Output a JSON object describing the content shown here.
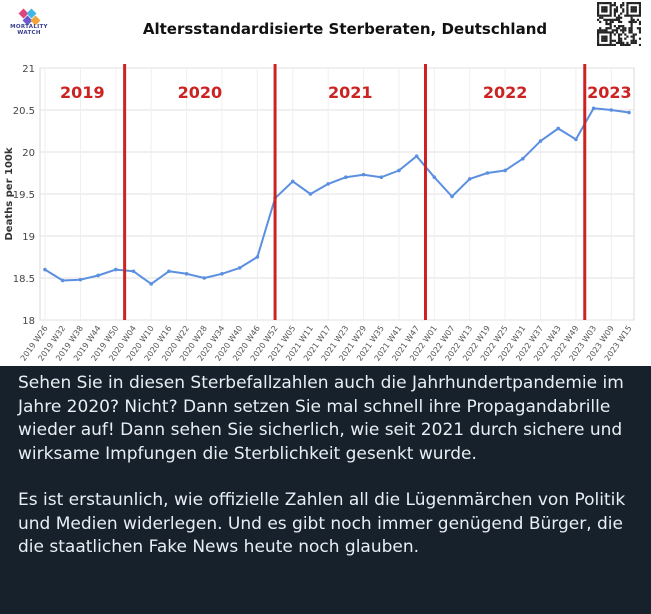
{
  "header": {
    "logo_text_line1": "MORTALITY",
    "logo_text_line2": "WATCH",
    "title": "Altersstandardisierte Sterberaten, Deutschland"
  },
  "chart_data": {
    "type": "line",
    "title": "Altersstandardisierte Sterberaten, Deutschland",
    "ylabel": "Deaths per 100k",
    "xlabel": "",
    "ylim": [
      18,
      21
    ],
    "yticks": [
      "21",
      "20.5",
      "20",
      "19.5",
      "19",
      "18.5",
      "18"
    ],
    "grid": true,
    "line_color": "#5b8fe0",
    "year_marker_color": "#cc2222",
    "year_labels": [
      "2019",
      "2020",
      "2021",
      "2022",
      "2023"
    ],
    "year_boundaries": [
      "2019 W52",
      "2020 W52",
      "2021 W52",
      "2022 W52"
    ],
    "tick_labels": [
      "2019 W26",
      "2019 W32",
      "2019 W38",
      "2019 W44",
      "2019 W50",
      "2020 W04",
      "2020 W10",
      "2020 W16",
      "2020 W22",
      "2020 W28",
      "2020 W34",
      "2020 W40",
      "2020 W46",
      "2020 W52",
      "2021 W05",
      "2021 W11",
      "2021 W17",
      "2021 W23",
      "2021 W29",
      "2021 W35",
      "2021 W41",
      "2021 W47",
      "2022 W01",
      "2022 W07",
      "2022 W13",
      "2022 W19",
      "2022 W25",
      "2022 W31",
      "2022 W37",
      "2022 W43",
      "2022 W49",
      "2023 W03",
      "2023 W09",
      "2023 W15"
    ],
    "series": [
      {
        "x": [
          "2019 W26",
          "2019 W32",
          "2019 W38",
          "2019 W44",
          "2019 W50",
          "2020 W04",
          "2020 W10",
          "2020 W16",
          "2020 W22",
          "2020 W28",
          "2020 W34",
          "2020 W40",
          "2020 W46",
          "2020 W52",
          "2021 W05",
          "2021 W11",
          "2021 W17",
          "2021 W23",
          "2021 W29",
          "2021 W35",
          "2021 W41",
          "2021 W47",
          "2022 W01",
          "2022 W07",
          "2022 W13",
          "2022 W19",
          "2022 W25",
          "2022 W31",
          "2022 W37",
          "2022 W43",
          "2022 W49",
          "2023 W03",
          "2023 W09",
          "2023 W15"
        ],
        "values": [
          18.6,
          18.47,
          18.48,
          18.53,
          18.6,
          18.58,
          18.43,
          18.58,
          18.55,
          18.5,
          18.55,
          18.62,
          18.75,
          19.45,
          19.65,
          19.5,
          19.62,
          19.7,
          19.73,
          19.7,
          19.78,
          19.95,
          19.7,
          19.47,
          19.68,
          19.75,
          19.78,
          19.92,
          20.13,
          20.28,
          20.15,
          20.52,
          20.5,
          20.47
        ]
      }
    ]
  },
  "caption": {
    "paragraph1": "Sehen Sie in diesen Sterbefallzahlen auch die Jahrhundertpandemie im Jahre 2020? Nicht? Dann setzen Sie mal schnell ihre Propagandabrille wieder auf! Dann sehen Sie sicherlich, wie seit 2021 durch sichere und wirksame Impfungen die Sterblichkeit gesenkt wurde.",
    "paragraph2": "Es ist erstaunlich, wie offizielle Zahlen all die Lügenmärchen von Politik und Medien widerlegen. Und es gibt noch immer genügend Bürger, die die staatlichen Fake News heute noch glauben."
  }
}
